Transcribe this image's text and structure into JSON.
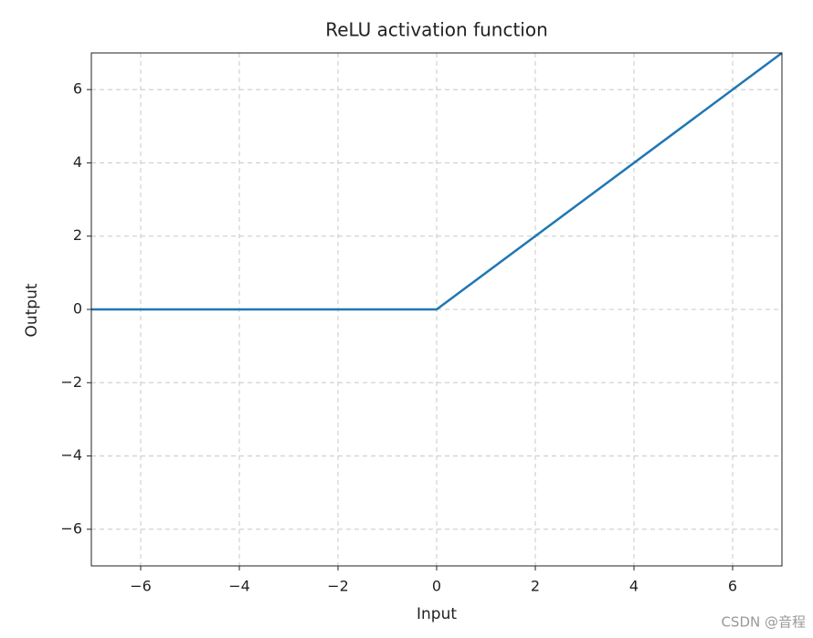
{
  "chart_data": {
    "type": "line",
    "title": "ReLU activation function",
    "x_label": "Input",
    "y_label": "Output",
    "x": [
      -7,
      0,
      7
    ],
    "series": [
      {
        "color": "#1f77b4",
        "values": [
          0,
          0,
          7
        ]
      }
    ],
    "xlim": [
      -7,
      7
    ],
    "ylim": [
      -7,
      7
    ],
    "xticks": [
      {
        "value": -6,
        "label": "−6"
      },
      {
        "value": -4,
        "label": "−4"
      },
      {
        "value": -2,
        "label": "−2"
      },
      0,
      2,
      4,
      6
    ],
    "yticks": [
      {
        "value": -6,
        "label": "−6"
      },
      {
        "value": -4,
        "label": "−4"
      },
      {
        "value": -2,
        "label": "−2"
      },
      0,
      2,
      4,
      6
    ],
    "grid": true,
    "watermark": "CSDN @音程"
  }
}
